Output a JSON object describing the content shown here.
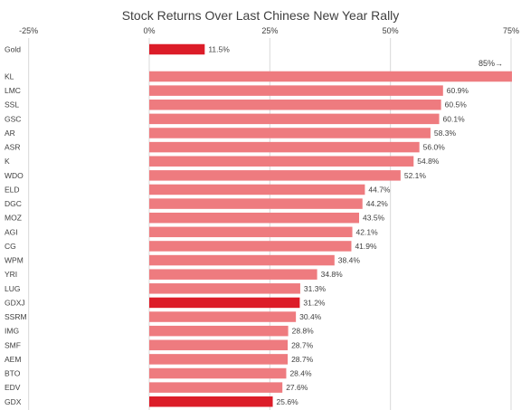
{
  "chart_data": {
    "type": "bar",
    "orientation": "horizontal",
    "title": "Stock Returns Over Last Chinese New Year Rally",
    "xlim": [
      -25,
      75
    ],
    "xticks": [
      -25,
      0,
      25,
      50,
      75
    ],
    "xtick_labels": [
      "-25%",
      "0%",
      "25%",
      "50%",
      "75%"
    ],
    "xaxis_position": "top",
    "grid": true,
    "annotation": "85%→",
    "categories": [
      "Gold",
      "KL",
      "LMC",
      "SSL",
      "GSC",
      "AR",
      "ASR",
      "K",
      "WDO",
      "ELD",
      "DGC",
      "MOZ",
      "AGI",
      "CG",
      "WPM",
      "YRI",
      "LUG",
      "GDXJ",
      "SSRM",
      "IMG",
      "SMF",
      "AEM",
      "BTO",
      "EDV",
      "GDX"
    ],
    "values": [
      11.5,
      85,
      60.9,
      60.5,
      60.1,
      58.3,
      56.0,
      54.8,
      52.1,
      44.7,
      44.2,
      43.5,
      42.1,
      41.9,
      38.4,
      34.8,
      31.3,
      31.2,
      30.4,
      28.8,
      28.7,
      28.7,
      28.4,
      27.6,
      25.6
    ],
    "value_labels": [
      "11.5%",
      "",
      "60.9%",
      "60.5%",
      "60.1%",
      "58.3%",
      "56.0%",
      "54.8%",
      "52.1%",
      "44.7%",
      "44.2%",
      "43.5%",
      "42.1%",
      "41.9%",
      "38.4%",
      "34.8%",
      "31.3%",
      "31.2%",
      "30.4%",
      "28.8%",
      "28.7%",
      "28.7%",
      "28.4%",
      "27.6%",
      "25.6%"
    ],
    "highlighted": [
      "Gold",
      "GDXJ",
      "GDX"
    ],
    "colors": {
      "bar": "#ee7b7f",
      "highlight": "#dc1c28",
      "grid": "#d9d9d9",
      "text": "#404040"
    }
  }
}
